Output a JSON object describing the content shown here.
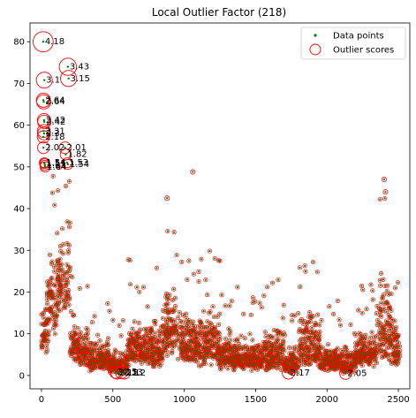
{
  "chart_data": {
    "type": "scatter",
    "title": "Local Outlier Factor (218)",
    "xlabel": "",
    "ylabel": "",
    "xlim": [
      -80,
      2580
    ],
    "ylim": [
      -3.2,
      84.5
    ],
    "xticks": [
      0,
      500,
      1000,
      1500,
      2000,
      2500
    ],
    "yticks": [
      0,
      10,
      20,
      30,
      40,
      50,
      60,
      70,
      80
    ],
    "grid": false,
    "legend": {
      "placement": "top-right",
      "entries": [
        {
          "label": "Data points",
          "marker": "dot",
          "color": "#008000"
        },
        {
          "label": "Outlier scores",
          "marker": "circle",
          "color": "#ff0000"
        }
      ]
    },
    "colors": {
      "points": "#008000",
      "circles": "#ff0000"
    },
    "series": [
      {
        "name": "Data points",
        "outliers": [
          {
            "x": 12,
            "y": 80.0,
            "score": 4.18,
            "label": "4.18"
          },
          {
            "x": 185,
            "y": 74.0,
            "score": 3.43,
            "label": "3.43"
          },
          {
            "x": 20,
            "y": 70.8,
            "score": 3.1,
            "label": "3.1"
          },
          {
            "x": 190,
            "y": 71.2,
            "score": 3.15,
            "label": "3.15"
          },
          {
            "x": 14,
            "y": 66.0,
            "score": 2.64,
            "label": "2.64"
          },
          {
            "x": 16,
            "y": 65.6,
            "score": 2.64,
            "label": "2.64"
          },
          {
            "x": 18,
            "y": 61.2,
            "score": 2.42,
            "label": "2.42"
          },
          {
            "x": 20,
            "y": 60.8,
            "score": 2.42,
            "label": "2.42"
          },
          {
            "x": 16,
            "y": 58.6,
            "score": 2.31,
            "label": "2.31"
          },
          {
            "x": 18,
            "y": 58.0,
            "score": 2.3,
            "label": "2.3"
          },
          {
            "x": 14,
            "y": 57.2,
            "score": 2.18,
            "label": "2.18"
          },
          {
            "x": 14,
            "y": 54.6,
            "score": 2.02,
            "label": "2.02"
          },
          {
            "x": 165,
            "y": 54.6,
            "score": 2.01,
            "label": "2.01"
          },
          {
            "x": 170,
            "y": 53.0,
            "score": 1.82,
            "label": "1.82"
          },
          {
            "x": 20,
            "y": 51.0,
            "score": 1.54,
            "label": "1.54"
          },
          {
            "x": 22,
            "y": 50.8,
            "score": 1.51,
            "label": "1.51"
          },
          {
            "x": 24,
            "y": 50.4,
            "score": 1.53,
            "label": "1.53"
          },
          {
            "x": 26,
            "y": 50.0,
            "score": 1.64,
            "label": "1.64"
          },
          {
            "x": 180,
            "y": 51.0,
            "score": 1.53,
            "label": "1.53"
          },
          {
            "x": 185,
            "y": 50.6,
            "score": 1.54,
            "label": "1.54"
          },
          {
            "x": 520,
            "y": 0.8,
            "score": 2.15,
            "label": "2.15"
          },
          {
            "x": 530,
            "y": 0.6,
            "score": 2.15,
            "label": "2.15"
          },
          {
            "x": 560,
            "y": 0.7,
            "score": 2.13,
            "label": "2.13"
          },
          {
            "x": 580,
            "y": 0.6,
            "score": 2.12,
            "label": "2.12"
          },
          {
            "x": 1730,
            "y": 0.6,
            "score": 2.17,
            "label": "2.17"
          },
          {
            "x": 2130,
            "y": 0.5,
            "score": 2.05,
            "label": "2.05"
          }
        ]
      }
    ],
    "note": "Bulk series of ~2500 points at low/moderate outlier scores"
  }
}
